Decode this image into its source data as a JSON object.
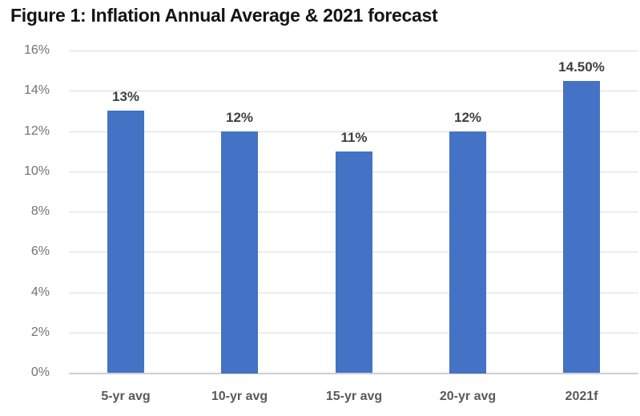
{
  "title": "Figure 1: Inflation Annual Average & 2021 forecast",
  "chart_data": {
    "type": "bar",
    "title": "Figure 1: Inflation Annual Average & 2021 forecast",
    "categories": [
      "5-yr avg",
      "10-yr avg",
      "15-yr avg",
      "20-yr avg",
      "2021f"
    ],
    "values": [
      13,
      12,
      11,
      12,
      14.5
    ],
    "data_labels": [
      "13%",
      "12%",
      "11%",
      "12%",
      "14.50%"
    ],
    "xlabel": "",
    "ylabel": "",
    "ylim": [
      0,
      16
    ],
    "ytick_step": 2,
    "ytick_labels": [
      "0%",
      "2%",
      "4%",
      "6%",
      "8%",
      "10%",
      "12%",
      "14%",
      "16%"
    ],
    "grid": true,
    "legend": "none",
    "colors": {
      "bar": "#4472C4",
      "gridline": "#dcdcdc",
      "axis_baseline": "#cfcfcf",
      "y_tick_label": "#737373",
      "category_label": "#595959",
      "data_label": "#3f3f3f",
      "title": "#141414",
      "background": "#ffffff"
    }
  }
}
